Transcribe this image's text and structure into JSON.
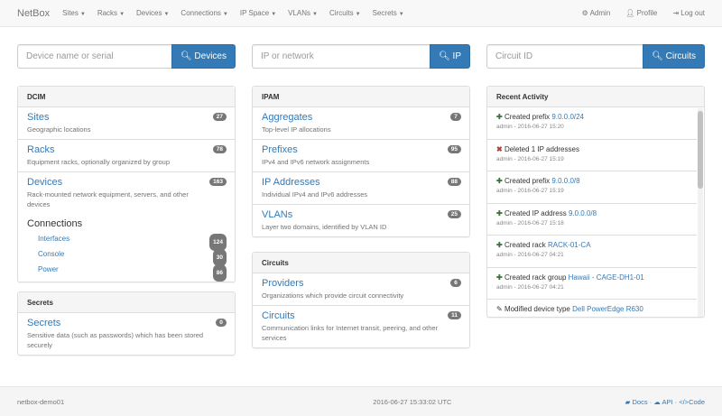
{
  "nav": {
    "brand": "NetBox",
    "menus": [
      "Sites",
      "Racks",
      "Devices",
      "Connections",
      "IP Space",
      "VLANs",
      "Circuits",
      "Secrets"
    ],
    "admin": "Admin",
    "profile": "Profile",
    "logout": "Log out"
  },
  "search": [
    {
      "placeholder": "Device name or serial",
      "button": "Devices"
    },
    {
      "placeholder": "IP or network",
      "button": "IP"
    },
    {
      "placeholder": "Circuit ID",
      "button": "Circuits"
    }
  ],
  "dcim": {
    "title": "DCIM",
    "items": [
      {
        "label": "Sites",
        "desc": "Geographic locations",
        "count": "27"
      },
      {
        "label": "Racks",
        "desc": "Equipment racks, optionally organized by group",
        "count": "78"
      },
      {
        "label": "Devices",
        "desc": "Rack-mounted network equipment, servers, and other devices",
        "count": "163"
      }
    ],
    "connections": {
      "label": "Connections",
      "items": [
        {
          "label": "Interfaces",
          "count": "124"
        },
        {
          "label": "Console",
          "count": "30"
        },
        {
          "label": "Power",
          "count": "86"
        }
      ]
    }
  },
  "secrets": {
    "title": "Secrets",
    "items": [
      {
        "label": "Secrets",
        "desc": "Sensitive data (such as passwords) which has been stored securely",
        "count": "0"
      }
    ]
  },
  "ipam": {
    "title": "IPAM",
    "items": [
      {
        "label": "Aggregates",
        "desc": "Top-level IP allocations",
        "count": "7"
      },
      {
        "label": "Prefixes",
        "desc": "IPv4 and IPv6 network assignments",
        "count": "95"
      },
      {
        "label": "IP Addresses",
        "desc": "Individual IPv4 and IPv6 addresses",
        "count": "88"
      },
      {
        "label": "VLANs",
        "desc": "Layer two domains, identified by VLAN ID",
        "count": "25"
      }
    ]
  },
  "circuits": {
    "title": "Circuits",
    "items": [
      {
        "label": "Providers",
        "desc": "Organizations which provide circuit connectivity",
        "count": "6"
      },
      {
        "label": "Circuits",
        "desc": "Communication links for Internet transit, peering, and other services",
        "count": "11"
      }
    ]
  },
  "activity": {
    "title": "Recent Activity",
    "items": [
      {
        "icon": "plus",
        "text": "Created prefix",
        "link": "9.0.0.0/24",
        "meta": "admin - 2016-06-27 15:20"
      },
      {
        "icon": "remove",
        "text": "Deleted 1 IP addresses",
        "link": "",
        "meta": "admin - 2016-06-27 15:19"
      },
      {
        "icon": "plus",
        "text": "Created prefix",
        "link": "9.0.0.0/8",
        "meta": "admin - 2016-06-27 15:19"
      },
      {
        "icon": "plus",
        "text": "Created IP address",
        "link": "9.0.0.0/8",
        "meta": "admin - 2016-06-27 15:18"
      },
      {
        "icon": "plus",
        "text": "Created rack",
        "link": "RACK-01-CA",
        "meta": "admin - 2016-06-27 04:21"
      },
      {
        "icon": "plus",
        "text": "Created rack group",
        "link": "Hawaii - CAGE-DH1-01",
        "meta": "admin - 2016-06-27 04:21"
      },
      {
        "icon": "pencil",
        "text": "Modified device type",
        "link": "Dell PowerEdge R630",
        "meta": ""
      }
    ]
  },
  "footer": {
    "host": "netbox-demo01",
    "time": "2016-06-27 15:33:02 UTC",
    "docs": "Docs",
    "api": "API",
    "code": "Code",
    "sep": "·"
  },
  "colors": {
    "primary": "#337ab7",
    "badge": "#777777",
    "success": "#3c763d",
    "danger": "#a94442"
  }
}
